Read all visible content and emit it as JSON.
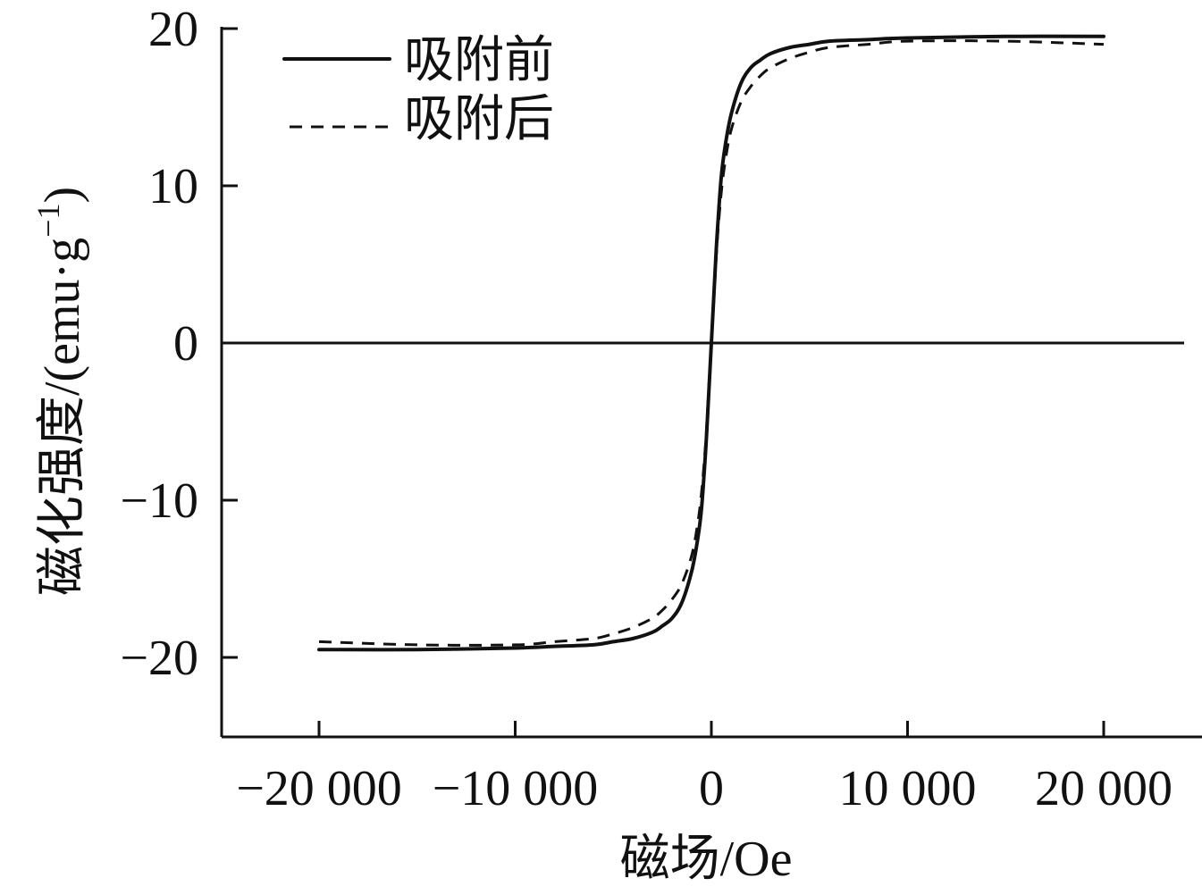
{
  "chart_data": {
    "type": "line",
    "title": "",
    "xlabel": "磁场/Oe",
    "ylabel": "磁化强度/(emu·g",
    "ylabel_sup": "−1",
    "ylabel_close": ")",
    "xlim": [
      -25000,
      25000
    ],
    "ylim": [
      -25,
      20
    ],
    "xticks": [
      -20000,
      -10000,
      0,
      10000,
      20000
    ],
    "xtick_labels": [
      "−20 000",
      "−10 000",
      "0",
      "10 000",
      "20 000"
    ],
    "yticks": [
      -20,
      -10,
      0,
      10,
      20
    ],
    "ytick_labels": [
      "−20",
      "−10",
      "0",
      "10",
      "20"
    ],
    "zero_line": true,
    "grid": false,
    "legend_position": "top-left",
    "series": [
      {
        "name": "吸附前",
        "style": "solid",
        "color": "#111111",
        "x": [
          -20000,
          -15000,
          -10000,
          -8000,
          -6000,
          -5000,
          -4000,
          -3000,
          -2500,
          -2000,
          -1500,
          -1000,
          -700,
          -500,
          -300,
          -200,
          -100,
          0,
          100,
          200,
          300,
          500,
          700,
          1000,
          1500,
          2000,
          2500,
          3000,
          4000,
          5000,
          6000,
          8000,
          10000,
          15000,
          20000
        ],
        "y": [
          -19.5,
          -19.5,
          -19.4,
          -19.3,
          -19.2,
          -19.0,
          -18.8,
          -18.4,
          -18.0,
          -17.5,
          -16.5,
          -14.5,
          -12.5,
          -10.5,
          -7.0,
          -4.8,
          -2.4,
          0,
          2.4,
          4.8,
          7.0,
          10.5,
          12.5,
          14.5,
          16.5,
          17.5,
          18.0,
          18.4,
          18.8,
          19.0,
          19.2,
          19.3,
          19.4,
          19.5,
          19.5
        ]
      },
      {
        "name": "吸附后",
        "style": "dashed",
        "color": "#111111",
        "x": [
          -20000,
          -15000,
          -10000,
          -8000,
          -6000,
          -5000,
          -4000,
          -3000,
          -2500,
          -2000,
          -1500,
          -1000,
          -700,
          -500,
          -300,
          -200,
          -100,
          0,
          100,
          200,
          300,
          500,
          700,
          1000,
          1500,
          2000,
          2500,
          3000,
          4000,
          5000,
          6000,
          8000,
          10000,
          15000,
          20000
        ],
        "y": [
          -19.0,
          -19.2,
          -19.2,
          -19.0,
          -18.8,
          -18.5,
          -18.1,
          -17.5,
          -17.0,
          -16.3,
          -15.3,
          -13.5,
          -11.5,
          -9.5,
          -6.5,
          -4.4,
          -2.2,
          0,
          2.2,
          4.4,
          6.5,
          9.5,
          11.5,
          13.5,
          15.3,
          16.3,
          17.0,
          17.5,
          18.1,
          18.5,
          18.8,
          19.0,
          19.2,
          19.2,
          19.0
        ]
      }
    ]
  }
}
